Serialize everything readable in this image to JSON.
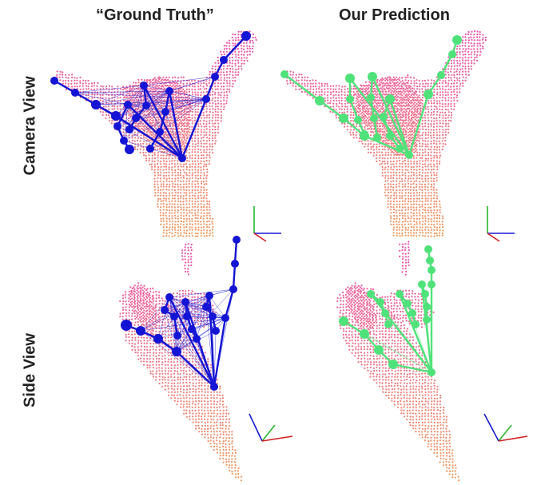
{
  "columns": [
    {
      "title": "“Ground Truth”"
    },
    {
      "title": "Our Prediction"
    }
  ],
  "rows": [
    {
      "label": "Camera View"
    },
    {
      "label": "Side View"
    }
  ],
  "colors": {
    "ground_truth_skeleton": "#1414d4",
    "prediction_skeleton": "#4fe27a",
    "point_cloud_top": "#e94fae",
    "point_cloud_bottom": "#f19a5a",
    "axis_x": "#d11f1f",
    "axis_y": "#2bb52b",
    "axis_z": "#1a1ad0"
  }
}
